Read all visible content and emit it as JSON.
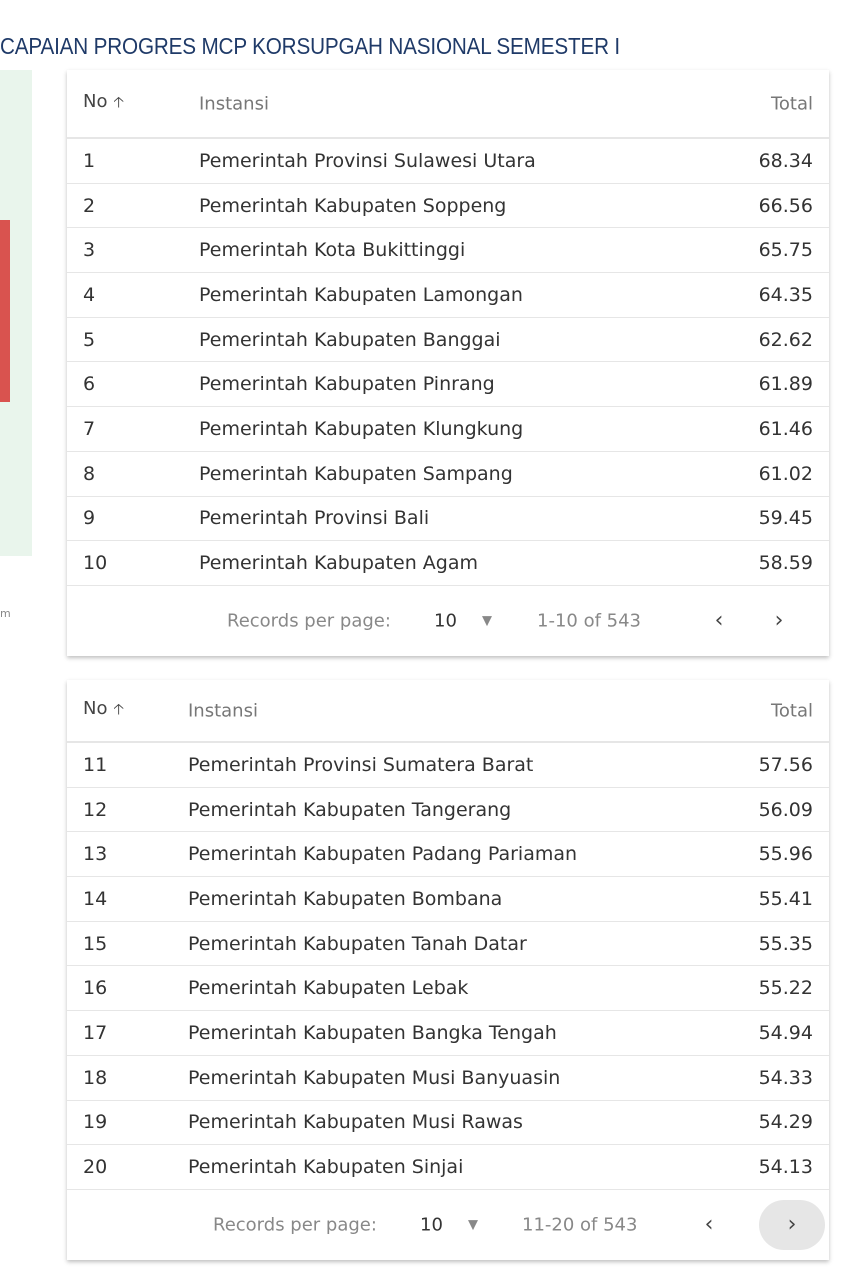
{
  "title": "CAPAIAN PROGRES MCP KORSUPGAH NASIONAL SEMESTER I",
  "left_fragment": "m",
  "tables": [
    {
      "headers": {
        "no": "No",
        "sort_icon": "arrow-up",
        "instansi": "Instansi",
        "total": "Total"
      },
      "rows": [
        {
          "no": "1",
          "instansi": "Pemerintah Provinsi Sulawesi Utara",
          "total": "68.34"
        },
        {
          "no": "2",
          "instansi": "Pemerintah Kabupaten Soppeng",
          "total": "66.56"
        },
        {
          "no": "3",
          "instansi": "Pemerintah Kota Bukittinggi",
          "total": "65.75"
        },
        {
          "no": "4",
          "instansi": "Pemerintah Kabupaten Lamongan",
          "total": "64.35"
        },
        {
          "no": "5",
          "instansi": "Pemerintah Kabupaten Banggai",
          "total": "62.62"
        },
        {
          "no": "6",
          "instansi": "Pemerintah Kabupaten Pinrang",
          "total": "61.89"
        },
        {
          "no": "7",
          "instansi": "Pemerintah Kabupaten Klungkung",
          "total": "61.46"
        },
        {
          "no": "8",
          "instansi": "Pemerintah Kabupaten Sampang",
          "total": "61.02"
        },
        {
          "no": "9",
          "instansi": "Pemerintah Provinsi Bali",
          "total": "59.45"
        },
        {
          "no": "10",
          "instansi": "Pemerintah Kabupaten Agam",
          "total": "58.59"
        }
      ],
      "footer": {
        "records_label": "Records per page:",
        "per_page": "10",
        "range": "1-10 of 543"
      }
    },
    {
      "headers": {
        "no": "No",
        "sort_icon": "arrow-up",
        "instansi": "Instansi",
        "total": "Total"
      },
      "rows": [
        {
          "no": "11",
          "instansi": "Pemerintah Provinsi Sumatera Barat",
          "total": "57.56"
        },
        {
          "no": "12",
          "instansi": "Pemerintah Kabupaten Tangerang",
          "total": "56.09"
        },
        {
          "no": "13",
          "instansi": "Pemerintah Kabupaten Padang Pariaman",
          "total": "55.96"
        },
        {
          "no": "14",
          "instansi": "Pemerintah Kabupaten Bombana",
          "total": "55.41"
        },
        {
          "no": "15",
          "instansi": "Pemerintah Kabupaten Tanah Datar",
          "total": "55.35"
        },
        {
          "no": "16",
          "instansi": "Pemerintah Kabupaten Lebak",
          "total": "55.22"
        },
        {
          "no": "17",
          "instansi": "Pemerintah Kabupaten Bangka Tengah",
          "total": "54.94"
        },
        {
          "no": "18",
          "instansi": "Pemerintah Kabupaten Musi Banyuasin",
          "total": "54.33"
        },
        {
          "no": "19",
          "instansi": "Pemerintah Kabupaten Musi Rawas",
          "total": "54.29"
        },
        {
          "no": "20",
          "instansi": "Pemerintah Kabupaten Sinjai",
          "total": "54.13"
        }
      ],
      "footer": {
        "records_label": "Records per page:",
        "per_page": "10",
        "range": "11-20 of 543"
      }
    }
  ]
}
